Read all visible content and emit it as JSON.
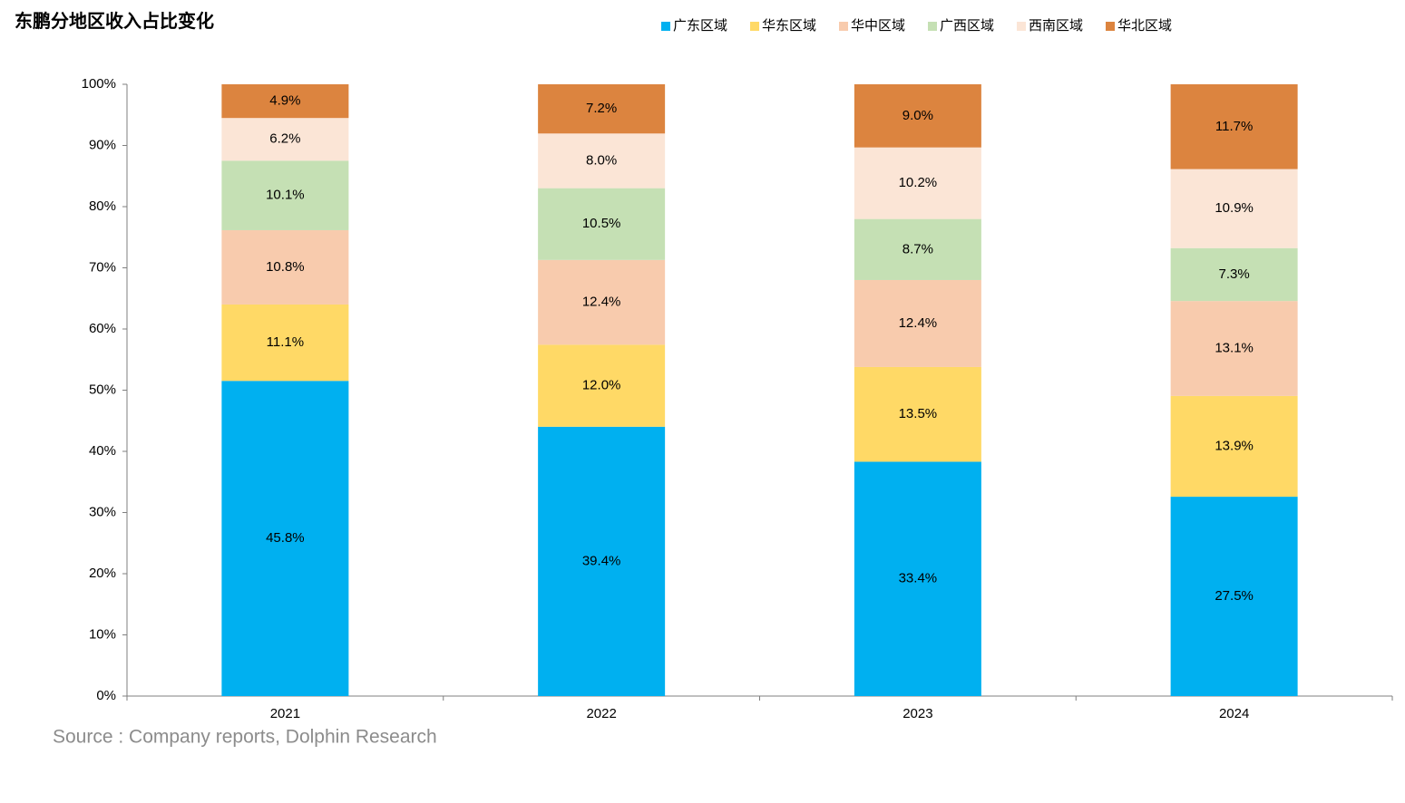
{
  "chart_data": {
    "type": "bar",
    "stack": "percent",
    "title": "东鹏分地区收入占比变化",
    "source": "Source : Company reports, Dolphin Research",
    "categories": [
      "2021",
      "2022",
      "2023",
      "2024"
    ],
    "series": [
      {
        "name": "广东区域",
        "color": "#00b0f0",
        "values": [
          45.8,
          39.4,
          33.4,
          27.5
        ],
        "value_labels": [
          "45.8%",
          "39.4%",
          "33.4%",
          "27.5%"
        ]
      },
      {
        "name": "华东区域",
        "color": "#ffd966",
        "values": [
          11.1,
          12.0,
          13.5,
          13.9
        ],
        "value_labels": [
          "11.1%",
          "12.0%",
          "13.5%",
          "13.9%"
        ]
      },
      {
        "name": "华中区域",
        "color": "#f8cbad",
        "values": [
          10.8,
          12.4,
          12.4,
          13.1
        ],
        "value_labels": [
          "10.8%",
          "12.4%",
          "12.4%",
          "13.1%"
        ]
      },
      {
        "name": "广西区域",
        "color": "#c5e0b4",
        "values": [
          10.1,
          10.5,
          8.7,
          7.3
        ],
        "value_labels": [
          "10.1%",
          "10.5%",
          "8.7%",
          "7.3%"
        ]
      },
      {
        "name": "西南区域",
        "color": "#fbe5d6",
        "values": [
          6.2,
          8.0,
          10.2,
          10.9
        ],
        "value_labels": [
          "6.2%",
          "8.0%",
          "10.2%",
          "10.9%"
        ]
      },
      {
        "name": "华北区域",
        "color": "#dc843f",
        "values": [
          4.9,
          7.2,
          9.0,
          11.7
        ],
        "value_labels": [
          "4.9%",
          "7.2%",
          "9.0%",
          "11.7%"
        ]
      }
    ],
    "ylim": [
      0,
      100
    ],
    "yticks": [
      {
        "value": 0,
        "label": "0%"
      },
      {
        "value": 10,
        "label": "10%"
      },
      {
        "value": 20,
        "label": "20%"
      },
      {
        "value": 30,
        "label": "30%"
      },
      {
        "value": 40,
        "label": "40%"
      },
      {
        "value": 50,
        "label": "50%"
      },
      {
        "value": 60,
        "label": "60%"
      },
      {
        "value": 70,
        "label": "70%"
      },
      {
        "value": 80,
        "label": "80%"
      },
      {
        "value": 90,
        "label": "90%"
      },
      {
        "value": 100,
        "label": "100%"
      }
    ],
    "grid": false,
    "legend": "top"
  }
}
